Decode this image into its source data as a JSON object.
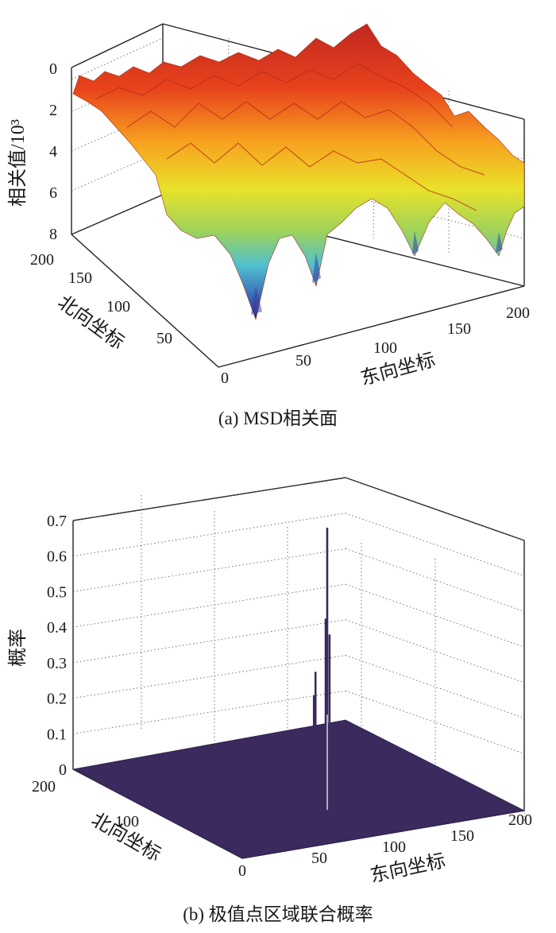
{
  "chart_data": [
    {
      "type": "surface",
      "caption": "(a) MSD相关面",
      "zlabel": "相关值/10³",
      "xlabel": "东向坐标",
      "ylabel": "北向坐标",
      "x_ticks": [
        "0",
        "50",
        "100",
        "150",
        "200"
      ],
      "y_ticks": [
        "50",
        "100",
        "150",
        "200"
      ],
      "z_ticks": [
        "0",
        "2",
        "4",
        "6",
        "8"
      ],
      "xlim": [
        0,
        200
      ],
      "ylim": [
        0,
        200
      ],
      "zlim": [
        0,
        8
      ],
      "z_axis_reversed": true,
      "colormap": "jet (red = small correlation value, blue = large)",
      "grid": true
    },
    {
      "type": "bar3d",
      "caption": "(b) 极值点区域联合概率",
      "zlabel": "概率",
      "xlabel": "东向坐标",
      "ylabel": "北向坐标",
      "x_ticks": [
        "0",
        "50",
        "100",
        "150",
        "200"
      ],
      "y_ticks": [
        "100",
        "200"
      ],
      "z_ticks": [
        "0",
        "0.1",
        "0.2",
        "0.3",
        "0.4",
        "0.5",
        "0.6",
        "0.7"
      ],
      "xlim": [
        0,
        200
      ],
      "ylim": [
        0,
        200
      ],
      "zlim": [
        0,
        0.7
      ],
      "color": "#3b2a5e",
      "peaks": [
        {
          "x": 110,
          "y": 138,
          "p": 0.66
        },
        {
          "x": 110,
          "y": 141,
          "p": 0.4
        },
        {
          "x": 111,
          "y": 137,
          "p": 0.36
        },
        {
          "x": 107,
          "y": 150,
          "p": 0.24
        },
        {
          "x": 107,
          "y": 153,
          "p": 0.17
        }
      ],
      "grid": true
    }
  ]
}
